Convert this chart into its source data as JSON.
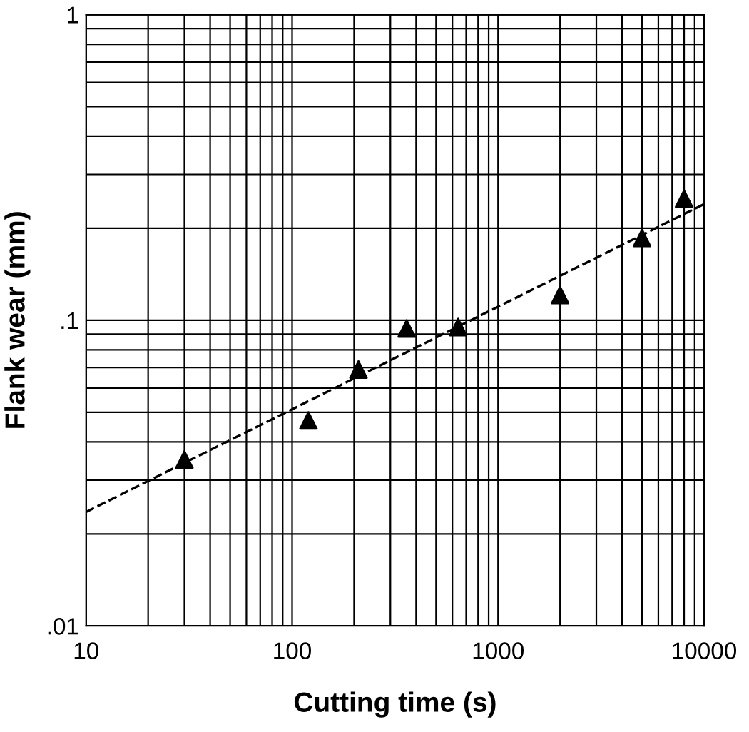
{
  "chart_data": {
    "type": "line",
    "xlabel": "Cutting time (s)",
    "ylabel": "Flank wear (mm)",
    "log": "xy",
    "grid": true,
    "marker": "triangle",
    "xlim": [
      10,
      10000
    ],
    "xticks": [
      10,
      100,
      1000,
      10000
    ],
    "ylim": [
      0.01,
      1
    ],
    "yticks": [
      {
        "value": 0.01,
        "label": ".01"
      },
      {
        "value": 0.1,
        "label": ".1"
      },
      1
    ],
    "series": [
      {
        "type": "scatter",
        "color": "#000000",
        "x": [
          30,
          120,
          210,
          360,
          640,
          2000,
          5000,
          8000
        ],
        "values": [
          0.035,
          0.047,
          0.069,
          0.094,
          0.095,
          0.121,
          0.186,
          0.25
        ]
      },
      {
        "color": "#000000",
        "line_style": "dashed",
        "marker": "none",
        "x": [
          10,
          10000
        ],
        "values": [
          0.0236,
          0.24
        ]
      }
    ]
  }
}
